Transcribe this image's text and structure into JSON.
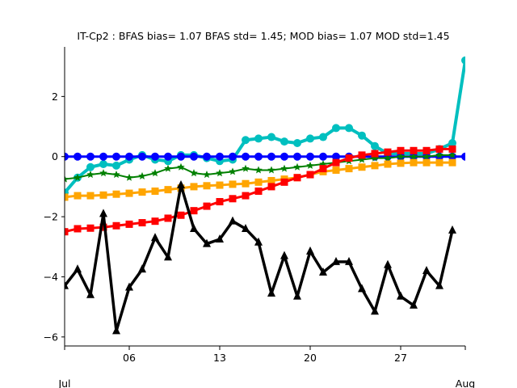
{
  "chart_data": {
    "type": "line",
    "title": "IT-Cp2   : BFAS bias= 1.07 BFAS std= 1.45; MOD bias= 1.07 MOD std=1.45",
    "xlabel": "",
    "ylabel": "",
    "xlim": [
      1,
      32
    ],
    "ylim": [
      -6.3,
      3.65
    ],
    "grid": false,
    "x_tick_values": [
      6,
      13,
      20,
      27
    ],
    "x_tick_labels": [
      "06",
      "13",
      "20",
      "27"
    ],
    "x_edge_labels": [
      "Jul",
      "Aug"
    ],
    "y_tick_values": [
      -6,
      -4,
      -2,
      0,
      2
    ],
    "y_tick_labels": [
      "−6",
      "−4",
      "−2",
      "0",
      "2"
    ],
    "series": [
      {
        "color": "#00bfbf",
        "marker": "circle",
        "linewidth": 4,
        "x": [
          1,
          2,
          3,
          4,
          5,
          6,
          7,
          8,
          9,
          10,
          11,
          12,
          13,
          14,
          15,
          16,
          17,
          18,
          19,
          20,
          21,
          22,
          23,
          24,
          25,
          26,
          27,
          28,
          29,
          30,
          31,
          32
        ],
        "y": [
          -1.2,
          -0.7,
          -0.35,
          -0.25,
          -0.3,
          -0.1,
          0.05,
          -0.1,
          -0.15,
          0.05,
          0.05,
          -0.05,
          -0.15,
          -0.1,
          0.55,
          0.6,
          0.65,
          0.5,
          0.45,
          0.6,
          0.65,
          0.95,
          0.95,
          0.7,
          0.35,
          0.1,
          0.1,
          0.1,
          0.1,
          0.25,
          0.45,
          3.2
        ]
      },
      {
        "color": "#0000ff",
        "marker": "circle",
        "linewidth": 3,
        "x": [
          1,
          2,
          3,
          4,
          5,
          6,
          7,
          8,
          9,
          10,
          11,
          12,
          13,
          14,
          15,
          16,
          17,
          18,
          19,
          20,
          21,
          22,
          23,
          24,
          25,
          26,
          27,
          28,
          29,
          30,
          31,
          32
        ],
        "y": [
          0,
          0,
          0,
          0,
          0,
          0,
          0,
          0,
          0,
          0,
          0,
          0,
          0,
          0,
          0,
          0,
          0,
          0,
          0,
          0,
          0,
          0,
          0,
          0,
          0,
          0,
          0,
          0,
          0,
          0,
          0,
          0
        ]
      },
      {
        "color": "#008000",
        "marker": "star",
        "linewidth": 2,
        "x": [
          1,
          2,
          3,
          4,
          5,
          6,
          7,
          8,
          9,
          10,
          11,
          12,
          13,
          14,
          15,
          16,
          17,
          18,
          19,
          20,
          21,
          22,
          23,
          24,
          25,
          26,
          27,
          28,
          29,
          30,
          31
        ],
        "y": [
          -0.75,
          -0.7,
          -0.6,
          -0.55,
          -0.6,
          -0.7,
          -0.65,
          -0.55,
          -0.4,
          -0.35,
          -0.55,
          -0.6,
          -0.55,
          -0.5,
          -0.4,
          -0.45,
          -0.45,
          -0.4,
          -0.35,
          -0.3,
          -0.25,
          -0.2,
          -0.15,
          -0.1,
          -0.05,
          -0.05,
          0,
          0,
          0,
          0.05,
          0.05
        ]
      },
      {
        "color": "#ffa500",
        "marker": "square",
        "linewidth": 3,
        "x": [
          1,
          2,
          3,
          4,
          5,
          6,
          7,
          8,
          9,
          10,
          11,
          12,
          13,
          14,
          15,
          16,
          17,
          18,
          19,
          20,
          21,
          22,
          23,
          24,
          25,
          26,
          27,
          28,
          29,
          30,
          31
        ],
        "y": [
          -1.35,
          -1.3,
          -1.3,
          -1.28,
          -1.25,
          -1.22,
          -1.18,
          -1.15,
          -1.1,
          -1.05,
          -1.0,
          -0.97,
          -0.95,
          -0.92,
          -0.9,
          -0.85,
          -0.8,
          -0.75,
          -0.7,
          -0.6,
          -0.5,
          -0.45,
          -0.4,
          -0.35,
          -0.3,
          -0.25,
          -0.22,
          -0.2,
          -0.2,
          -0.2,
          -0.2
        ]
      },
      {
        "color": "#ff0000",
        "marker": "square",
        "linewidth": 3,
        "x": [
          1,
          2,
          3,
          4,
          5,
          6,
          7,
          8,
          9,
          10,
          11,
          12,
          13,
          14,
          15,
          16,
          17,
          18,
          19,
          20,
          21,
          22,
          23,
          24,
          25,
          26,
          27,
          28,
          29,
          30,
          31
        ],
        "y": [
          -2.5,
          -2.4,
          -2.38,
          -2.35,
          -2.3,
          -2.25,
          -2.2,
          -2.15,
          -2.05,
          -1.95,
          -1.8,
          -1.65,
          -1.5,
          -1.4,
          -1.3,
          -1.15,
          -1.0,
          -0.85,
          -0.7,
          -0.6,
          -0.4,
          -0.2,
          -0.05,
          0.05,
          0.1,
          0.15,
          0.2,
          0.2,
          0.2,
          0.25,
          0.25
        ]
      },
      {
        "color": "#000000",
        "marker": "triangle",
        "linewidth": 3.5,
        "x": [
          1,
          2,
          3,
          4,
          5,
          6,
          7,
          8,
          9,
          10,
          11,
          12,
          13,
          14,
          15,
          16,
          17,
          18,
          19,
          20,
          21,
          22,
          23,
          24,
          25,
          26,
          27,
          28,
          29,
          30,
          31
        ],
        "y": [
          -4.3,
          -3.75,
          -4.6,
          -1.9,
          -5.8,
          -4.35,
          -3.75,
          -2.7,
          -3.35,
          -0.95,
          -2.4,
          -2.9,
          -2.75,
          -2.15,
          -2.4,
          -2.85,
          -4.55,
          -3.3,
          -4.65,
          -3.15,
          -3.85,
          -3.5,
          -3.5,
          -4.4,
          -5.15,
          -3.6,
          -4.65,
          -4.95,
          -3.8,
          -4.3,
          -2.45
        ]
      }
    ]
  }
}
